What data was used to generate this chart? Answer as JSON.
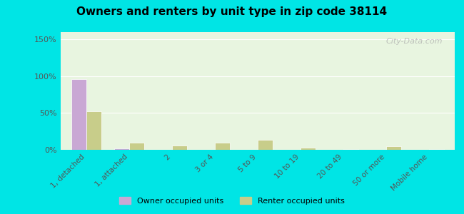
{
  "title": "Owners and renters by unit type in zip code 38114",
  "categories": [
    "1, detached",
    "1, attached",
    "2",
    "3 or 4",
    "5 to 9",
    "10 to 19",
    "20 to 49",
    "50 or more",
    "Mobile home"
  ],
  "owner_values": [
    96,
    2,
    0,
    0,
    0,
    0,
    0,
    0,
    0
  ],
  "renter_values": [
    52,
    10,
    6,
    10,
    14,
    3,
    1,
    5,
    1
  ],
  "owner_color": "#c9a8d4",
  "renter_color": "#c8cd8a",
  "ylim": [
    0,
    160
  ],
  "yticks": [
    0,
    50,
    100,
    150
  ],
  "ytick_labels": [
    "0%",
    "50%",
    "100%",
    "150%"
  ],
  "bg_color": "#e8f5e0",
  "outer_bg": "#00e5e5",
  "grid_color": "#ffffff",
  "watermark": "City-Data.com",
  "legend_owner": "Owner occupied units",
  "legend_renter": "Renter occupied units"
}
